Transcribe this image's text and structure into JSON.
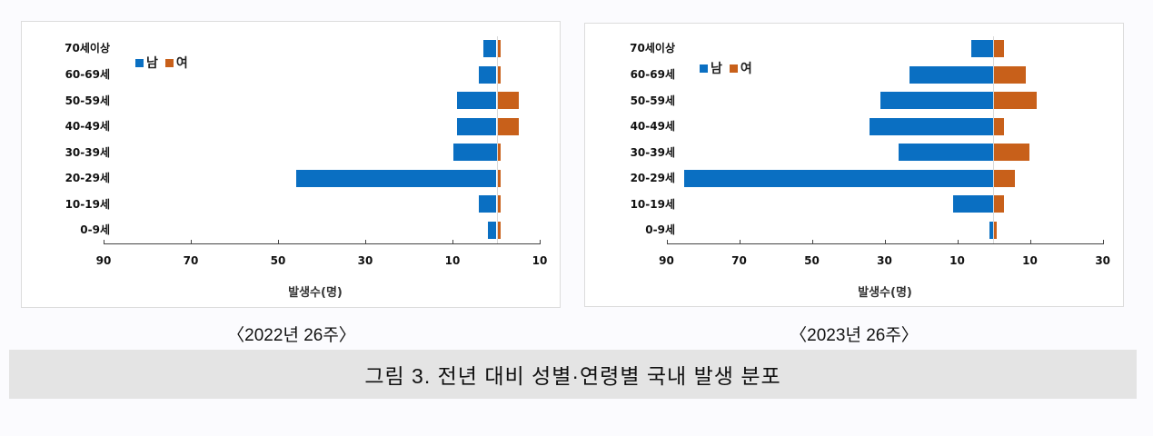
{
  "figure": {
    "title": "그림 3. 전년 대비 성별·연령별 국내 발생 분포"
  },
  "legend": {
    "male": "남",
    "female": "여",
    "male_color": "#0a6fc2",
    "female_color": "#c8601a"
  },
  "charts": [
    {
      "caption": "〈2022년 26주〉",
      "axis_title": "발생수(명)",
      "tick_labels": [
        "90",
        "70",
        "50",
        "30",
        "10",
        "10"
      ]
    },
    {
      "caption": "〈2023년 26주〉",
      "axis_title": "발생수(명)",
      "tick_labels": [
        "90",
        "70",
        "50",
        "30",
        "10",
        "10",
        "30"
      ]
    }
  ],
  "chart_data": [
    {
      "type": "bar",
      "orientation": "horizontal",
      "subtype": "population-pyramid",
      "title": "〈2022년 26주〉",
      "xlabel": "발생수(명)",
      "ylabel": "",
      "categories": [
        "70세이상",
        "60-69세",
        "50-59세",
        "40-49세",
        "30-39세",
        "20-29세",
        "10-19세",
        "0-9세"
      ],
      "series": [
        {
          "name": "남",
          "color": "#0a6fc2",
          "values": [
            3,
            4,
            9,
            9,
            10,
            46,
            4,
            2
          ]
        },
        {
          "name": "여",
          "color": "#c8601a",
          "values": [
            1,
            1,
            5,
            5,
            1,
            1,
            1,
            1
          ]
        }
      ],
      "xticks": [
        "90",
        "70",
        "50",
        "30",
        "10",
        "10"
      ],
      "xlim_male": [
        0,
        90
      ],
      "xlim_female": [
        0,
        10
      ],
      "grid": false,
      "legend_position": "top-left inside"
    },
    {
      "type": "bar",
      "orientation": "horizontal",
      "subtype": "population-pyramid",
      "title": "〈2023년 26주〉",
      "xlabel": "발생수(명)",
      "ylabel": "",
      "categories": [
        "70세이상",
        "60-69세",
        "50-59세",
        "40-49세",
        "30-39세",
        "20-29세",
        "10-19세",
        "0-9세"
      ],
      "series": [
        {
          "name": "남",
          "color": "#0a6fc2",
          "values": [
            6,
            23,
            31,
            34,
            26,
            85,
            11,
            1
          ]
        },
        {
          "name": "여",
          "color": "#c8601a",
          "values": [
            3,
            9,
            12,
            3,
            10,
            6,
            3,
            1
          ]
        }
      ],
      "xticks": [
        "90",
        "70",
        "50",
        "30",
        "10",
        "10",
        "30"
      ],
      "xlim_male": [
        0,
        90
      ],
      "xlim_female": [
        0,
        30
      ],
      "grid": false,
      "legend_position": "top-left inside"
    }
  ]
}
